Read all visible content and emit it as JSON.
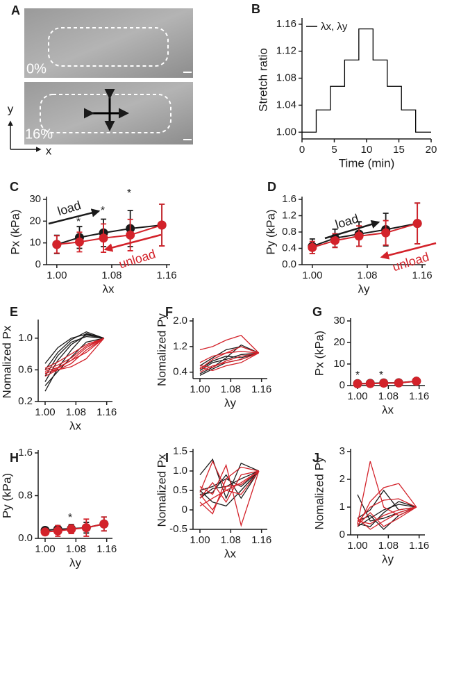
{
  "panel_a": {
    "label": "A",
    "images": [
      "0%",
      "16%"
    ],
    "axis_labels": [
      "y",
      "x"
    ]
  },
  "chart_data": [
    {
      "panel": "B",
      "type": "line",
      "x_label": "Time (min)",
      "y_label": "Stretch ratio",
      "x": [
        0,
        2.2,
        2.2,
        4.4,
        4.4,
        6.6,
        6.6,
        8.8,
        8.8,
        11,
        11,
        13.2,
        13.2,
        15.4,
        15.4,
        17.6,
        17.6,
        20
      ],
      "series": [
        {
          "name": "λx, λy",
          "color": "#000000",
          "values": [
            1,
            1,
            1.033,
            1.033,
            1.068,
            1.068,
            1.107,
            1.107,
            1.153,
            1.153,
            1.107,
            1.107,
            1.068,
            1.068,
            1.033,
            1.033,
            1,
            1
          ]
        }
      ],
      "xlim": [
        0,
        20
      ],
      "xticks": [
        0,
        5,
        10,
        15,
        20
      ],
      "ylim": [
        0.99,
        1.165
      ],
      "yticks": [
        {
          "value": 1,
          "label": "1.00"
        },
        {
          "value": 1.04,
          "label": "1.04"
        },
        {
          "value": 1.08,
          "label": "1.08"
        },
        {
          "value": 1.12,
          "label": "1.12"
        },
        {
          "value": 1.16,
          "label": "1.16"
        }
      ],
      "legend": "upper left"
    },
    {
      "panel": "C",
      "type": "line",
      "x_label": "λx",
      "y_label": "Px (kPa)",
      "x": [
        1,
        1.033,
        1.068,
        1.107,
        1.153
      ],
      "series": [
        {
          "color": "#1a1a1a",
          "marker": true,
          "values": [
            9.3,
            12.5,
            14.6,
            16.6,
            18.2
          ],
          "errors": [
            4.2,
            5,
            6.3,
            8.3,
            9.6
          ]
        },
        {
          "color": "#d3222a",
          "marker": true,
          "values": [
            9.3,
            10.4,
            12.2,
            13.6,
            18.2
          ],
          "errors": [
            4,
            4.5,
            6.5,
            7.2,
            9.6
          ]
        }
      ],
      "xlim": [
        0.985,
        1.165
      ],
      "xticks": [
        {
          "value": 1,
          "label": "1.00"
        },
        {
          "value": 1.08,
          "label": "1.08"
        },
        {
          "value": 1.16,
          "label": "1.16"
        }
      ],
      "ylim": [
        0,
        30
      ],
      "yticks": [
        0,
        10,
        20,
        30
      ],
      "annotations": [
        "load",
        "unload",
        "*",
        "*",
        "*"
      ]
    },
    {
      "panel": "D",
      "type": "line",
      "x_label": "λy",
      "y_label": "Py (kPa)",
      "x": [
        1,
        1.033,
        1.068,
        1.107,
        1.153
      ],
      "series": [
        {
          "color": "#1a1a1a",
          "marker": true,
          "values": [
            0.45,
            0.65,
            0.75,
            0.86,
            1.01
          ],
          "errors": [
            0.18,
            0.22,
            0.3,
            0.4,
            0.5
          ]
        },
        {
          "color": "#d3222a",
          "marker": true,
          "values": [
            0.42,
            0.59,
            0.7,
            0.78,
            1.01
          ],
          "errors": [
            0.15,
            0.17,
            0.25,
            0.3,
            0.5
          ]
        }
      ],
      "xlim": [
        0.985,
        1.165
      ],
      "xticks": [
        {
          "value": 1,
          "label": "1.00"
        },
        {
          "value": 1.08,
          "label": "1.08"
        },
        {
          "value": 1.16,
          "label": "1.16"
        }
      ],
      "ylim": [
        0,
        1.6
      ],
      "yticks": [
        {
          "value": 0,
          "label": "0.0"
        },
        0.4,
        0.8,
        1.2,
        1.6
      ],
      "annotations": [
        "load",
        "unload"
      ]
    },
    {
      "panel": "E",
      "type": "line",
      "x_label": "λx",
      "y_label": "Nomalized Px",
      "x": [
        1,
        1.033,
        1.068,
        1.107,
        1.153
      ],
      "series": [
        {
          "color": "#1a1a1a",
          "values": [
            0.33,
            0.62,
            0.85,
            1.06,
            1
          ]
        },
        {
          "color": "#1a1a1a",
          "values": [
            0.45,
            0.72,
            0.92,
            1.04,
            1
          ]
        },
        {
          "color": "#1a1a1a",
          "values": [
            0.52,
            0.78,
            0.95,
            1.02,
            1
          ]
        },
        {
          "color": "#1a1a1a",
          "values": [
            0.6,
            0.82,
            0.98,
            1.08,
            1
          ]
        },
        {
          "color": "#1a1a1a",
          "values": [
            0.68,
            0.88,
            1,
            1.05,
            1
          ]
        },
        {
          "color": "#1a1a1a",
          "values": [
            0.4,
            0.58,
            0.76,
            0.95,
            1
          ]
        },
        {
          "color": "#d3222a",
          "values": [
            0.52,
            0.6,
            0.68,
            0.85,
            1
          ]
        },
        {
          "color": "#d3222a",
          "values": [
            0.55,
            0.62,
            0.72,
            0.82,
            1
          ]
        },
        {
          "color": "#d3222a",
          "values": [
            0.58,
            0.63,
            0.72,
            0.88,
            1
          ]
        },
        {
          "color": "#d3222a",
          "values": [
            0.6,
            0.66,
            0.75,
            0.9,
            1
          ]
        },
        {
          "color": "#d3222a",
          "values": [
            0.62,
            0.7,
            0.8,
            0.92,
            1
          ]
        },
        {
          "color": "#d3222a",
          "values": [
            0.56,
            0.6,
            0.64,
            0.74,
            1
          ]
        }
      ],
      "xlim": [
        0.982,
        1.175
      ],
      "xticks": [
        {
          "value": 1,
          "label": "1.00"
        },
        {
          "value": 1.08,
          "label": "1.08"
        },
        {
          "value": 1.16,
          "label": "1.16"
        }
      ],
      "ylim": [
        0.2,
        1.2
      ],
      "yticks": [
        0.2,
        0.6,
        {
          "value": 1,
          "label": "1.0"
        }
      ]
    },
    {
      "panel": "F",
      "type": "line",
      "x_label": "λy",
      "y_label": "Nomalized Py",
      "x": [
        1,
        1.033,
        1.068,
        1.107,
        1.153
      ],
      "series": [
        {
          "color": "#1a1a1a",
          "values": [
            0.35,
            0.55,
            0.85,
            1.25,
            1
          ]
        },
        {
          "color": "#1a1a1a",
          "values": [
            0.45,
            0.7,
            0.8,
            0.95,
            1
          ]
        },
        {
          "color": "#1a1a1a",
          "values": [
            0.5,
            0.75,
            0.9,
            0.85,
            1
          ]
        },
        {
          "color": "#1a1a1a",
          "values": [
            0.6,
            0.85,
            1.1,
            1.2,
            1
          ]
        },
        {
          "color": "#1a1a1a",
          "values": [
            0.3,
            0.5,
            0.7,
            0.8,
            1
          ]
        },
        {
          "color": "#d3222a",
          "values": [
            1.1,
            1.2,
            1.4,
            1.55,
            1
          ]
        },
        {
          "color": "#d3222a",
          "values": [
            0.5,
            0.8,
            1,
            1.2,
            1
          ]
        },
        {
          "color": "#d3222a",
          "values": [
            0.6,
            0.55,
            0.75,
            0.9,
            1
          ]
        },
        {
          "color": "#d3222a",
          "values": [
            0.4,
            0.6,
            0.7,
            0.8,
            1
          ]
        },
        {
          "color": "#d3222a",
          "values": [
            0.7,
            0.9,
            1,
            1.05,
            1
          ]
        },
        {
          "color": "#d3222a",
          "values": [
            0.55,
            0.45,
            0.6,
            0.7,
            1
          ]
        }
      ],
      "xlim": [
        0.982,
        1.175
      ],
      "xticks": [
        {
          "value": 1,
          "label": "1.00"
        },
        {
          "value": 1.08,
          "label": "1.08"
        },
        {
          "value": 1.16,
          "label": "1.16"
        }
      ],
      "ylim": [
        0.2,
        2
      ],
      "yticks": [
        0.4,
        1.2,
        {
          "value": 2,
          "label": "2.0"
        }
      ]
    },
    {
      "panel": "G",
      "type": "line",
      "x_label": "λx",
      "y_label": "Px (kPa)",
      "x": [
        1,
        1.033,
        1.068,
        1.107,
        1.153
      ],
      "series": [
        {
          "color": "#1a1a1a",
          "marker": true,
          "values": [
            0.9,
            1,
            1.2,
            1.3,
            2
          ],
          "errors": [
            0.3,
            0.3,
            0.4,
            0.4,
            0.8
          ]
        },
        {
          "color": "#d3222a",
          "marker": true,
          "values": [
            0.8,
            0.9,
            1.1,
            1.2,
            2
          ],
          "errors": [
            0.3,
            0.3,
            0.4,
            0.4,
            0.8
          ]
        }
      ],
      "xlim": [
        0.982,
        1.175
      ],
      "xticks": [
        {
          "value": 1,
          "label": "1.00"
        },
        {
          "value": 1.08,
          "label": "1.08"
        },
        {
          "value": 1.16,
          "label": "1.16"
        }
      ],
      "ylim": [
        0,
        30
      ],
      "yticks": [
        0,
        10,
        20,
        30
      ],
      "annotations": [
        "*",
        "*"
      ]
    },
    {
      "panel": "H",
      "type": "line",
      "x_label": "λy",
      "y_label": "Py (kPa)",
      "x": [
        1,
        1.033,
        1.068,
        1.107,
        1.153
      ],
      "series": [
        {
          "color": "#1a1a1a",
          "marker": true,
          "values": [
            0.15,
            0.17,
            0.18,
            0.2,
            0.27
          ],
          "errors": [
            0.04,
            0.06,
            0.08,
            0.1,
            0.13
          ]
        },
        {
          "color": "#d3222a",
          "marker": true,
          "values": [
            0.12,
            0.14,
            0.17,
            0.2,
            0.27
          ],
          "errors": [
            0.04,
            0.1,
            0.08,
            0.16,
            0.13
          ]
        }
      ],
      "xlim": [
        0.982,
        1.175
      ],
      "xticks": [
        {
          "value": 1,
          "label": "1.00"
        },
        {
          "value": 1.08,
          "label": "1.08"
        },
        {
          "value": 1.16,
          "label": "1.16"
        }
      ],
      "ylim": [
        0,
        1.6
      ],
      "yticks": [
        {
          "value": 0,
          "label": "0.0"
        },
        0.8,
        1.6
      ],
      "annotations": [
        "*"
      ]
    },
    {
      "panel": "I",
      "type": "line",
      "x_label": "λx",
      "y_label": "Nomalized Px",
      "x": [
        1,
        1.033,
        1.068,
        1.107,
        1.153
      ],
      "series": [
        {
          "color": "#1a1a1a",
          "values": [
            0.9,
            1.3,
            0.3,
            1.2,
            1
          ]
        },
        {
          "color": "#1a1a1a",
          "values": [
            0.5,
            0.6,
            0.8,
            0.6,
            1
          ]
        },
        {
          "color": "#1a1a1a",
          "values": [
            0.4,
            0.45,
            0.9,
            0.3,
            1
          ]
        },
        {
          "color": "#1a1a1a",
          "values": [
            0.3,
            0.55,
            0.6,
            0.8,
            1
          ]
        },
        {
          "color": "#1a1a1a",
          "values": [
            0.5,
            0.2,
            0.1,
            0.5,
            1
          ]
        },
        {
          "color": "#d3222a",
          "values": [
            0.45,
            1.25,
            0.5,
            0.4,
            1
          ]
        },
        {
          "color": "#d3222a",
          "values": [
            0.2,
            -0.1,
            0.8,
            1.1,
            1
          ]
        },
        {
          "color": "#d3222a",
          "values": [
            0.6,
            0.4,
            1.15,
            -0.4,
            1
          ]
        },
        {
          "color": "#d3222a",
          "values": [
            0.3,
            0.7,
            0.2,
            0.9,
            1
          ]
        },
        {
          "color": "#d3222a",
          "values": [
            0.1,
            0.3,
            0.5,
            0.7,
            1
          ]
        },
        {
          "color": "#d3222a",
          "values": [
            0.4,
            0,
            0.6,
            0.65,
            1
          ]
        }
      ],
      "xlim": [
        0.982,
        1.175
      ],
      "xticks": [
        {
          "value": 1,
          "label": "1.00"
        },
        {
          "value": 1.08,
          "label": "1.08"
        },
        {
          "value": 1.16,
          "label": "1.16"
        }
      ],
      "ylim": [
        -0.5,
        1.5
      ],
      "yticks": [
        -0.5,
        0,
        0.5,
        {
          "value": 1,
          "label": "1.0"
        },
        1.5
      ]
    },
    {
      "panel": "J",
      "type": "line",
      "x_label": "λy",
      "y_label": "Nomalized Py",
      "x": [
        1,
        1.033,
        1.068,
        1.107,
        1.153
      ],
      "series": [
        {
          "color": "#1a1a1a",
          "values": [
            1.45,
            0.5,
            0.6,
            0.8,
            1
          ]
        },
        {
          "color": "#1a1a1a",
          "values": [
            0.6,
            0.9,
            1.6,
            0.9,
            1
          ]
        },
        {
          "color": "#1a1a1a",
          "values": [
            0.4,
            0.3,
            0.8,
            1.2,
            1
          ]
        },
        {
          "color": "#1a1a1a",
          "values": [
            0.5,
            0.7,
            0.2,
            0.7,
            1
          ]
        },
        {
          "color": "#1a1a1a",
          "values": [
            0.3,
            0.6,
            0.9,
            1.1,
            1
          ]
        },
        {
          "color": "#d3222a",
          "values": [
            0.4,
            2.65,
            1,
            0.7,
            1
          ]
        },
        {
          "color": "#d3222a",
          "values": [
            0.3,
            1.2,
            1.7,
            1.85,
            1
          ]
        },
        {
          "color": "#d3222a",
          "values": [
            0.5,
            0.4,
            0.7,
            0.9,
            1
          ]
        },
        {
          "color": "#d3222a",
          "values": [
            0.35,
            0.8,
            0.3,
            0.6,
            1
          ]
        },
        {
          "color": "#d3222a",
          "values": [
            0.45,
            1,
            1.25,
            1.3,
            1
          ]
        },
        {
          "color": "#d3222a",
          "values": [
            0.6,
            0.2,
            0.5,
            0.8,
            1
          ]
        }
      ],
      "xlim": [
        0.982,
        1.175
      ],
      "xticks": [
        {
          "value": 1,
          "label": "1.00"
        },
        {
          "value": 1.08,
          "label": "1.08"
        },
        {
          "value": 1.16,
          "label": "1.16"
        }
      ],
      "ylim": [
        0,
        3
      ],
      "yticks": [
        0,
        1,
        2,
        3
      ]
    }
  ]
}
